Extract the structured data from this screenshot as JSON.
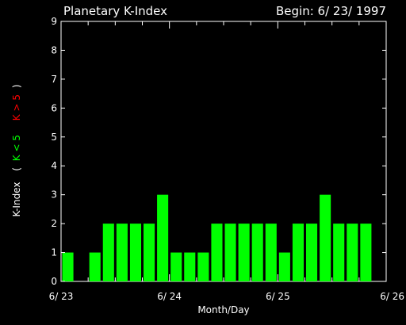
{
  "chart_data": {
    "type": "bar",
    "title": "Planetary K-Index",
    "subtitle": "Begin: 6/ 23/ 1997",
    "xlabel": "Month/Day",
    "ylabel": {
      "prefix": "K-Index",
      "open": "(",
      "green_part": "K < 5",
      "red_part": "K > 5",
      "close": ")"
    },
    "ylim": [
      0,
      9
    ],
    "y_ticks": [
      "0",
      "1",
      "2",
      "3",
      "4",
      "5",
      "6",
      "7",
      "8",
      "9"
    ],
    "x_tick_labels": [
      "6/ 23",
      "6/ 24",
      "6/ 25",
      "6/ 26"
    ],
    "bins_per_day": 8,
    "days": 3,
    "values": [
      1,
      0,
      1,
      2,
      2,
      2,
      2,
      3,
      1,
      1,
      1,
      2,
      2,
      2,
      2,
      2,
      1,
      2,
      2,
      3,
      2,
      2,
      2,
      0
    ],
    "colors": {
      "background": "#000000",
      "axis": "#ffffff",
      "bar_low": "#00ff00",
      "bar_high": "#ff0000",
      "text": "#ffffff"
    },
    "threshold": 5,
    "grid": false,
    "legend": "none"
  }
}
